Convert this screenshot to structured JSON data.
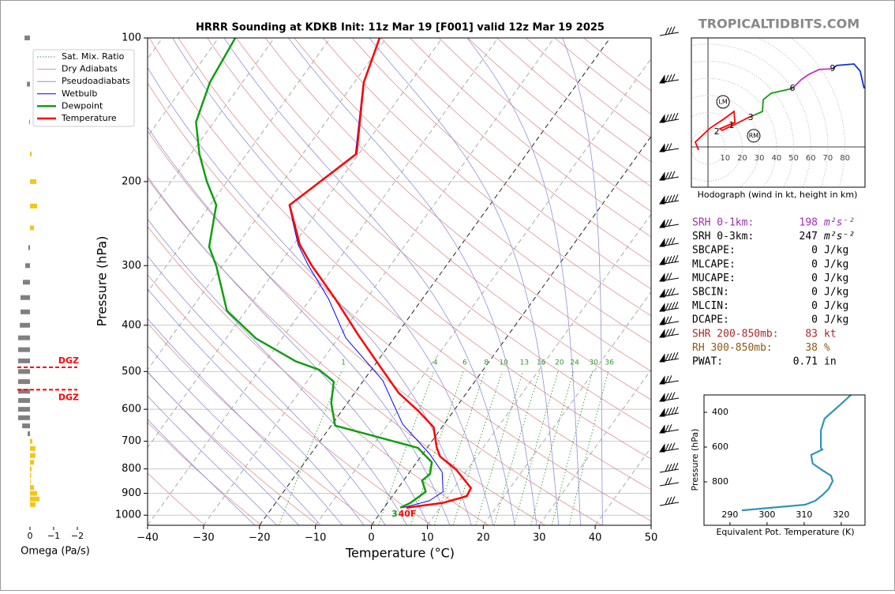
{
  "brand": "TROPICALTIDBITS.COM",
  "indices": [
    {
      "label": "SRH 0-1km:",
      "value": 198,
      "unit": "m²s⁻²",
      "color": "#9b30b0"
    },
    {
      "label": "SRH 0-3km:",
      "value": 247,
      "unit": "m²s⁻²",
      "color": "#000000"
    },
    {
      "label": "SBCAPE:",
      "value": 0,
      "unit": "J/kg",
      "color": "#000000"
    },
    {
      "label": "MLCAPE:",
      "value": 0,
      "unit": "J/kg",
      "color": "#000000"
    },
    {
      "label": "MUCAPE:",
      "value": 0,
      "unit": "J/kg",
      "color": "#000000"
    },
    {
      "label": "SBCIN:",
      "value": 0,
      "unit": "J/kg",
      "color": "#000000"
    },
    {
      "label": "MLCIN:",
      "value": 0,
      "unit": "J/kg",
      "color": "#000000"
    },
    {
      "label": "DCAPE:",
      "value": 0,
      "unit": "J/kg",
      "color": "#000000"
    },
    {
      "label": "SHR 200-850mb:",
      "value": 83,
      "unit": "kt",
      "color": "#a52a2a"
    },
    {
      "label": "RH 300-850mb:",
      "value": 38,
      "unit": "%",
      "color": "#8b5a14"
    },
    {
      "label": "PWAT:",
      "value": 0.71,
      "unit": "in",
      "color": "#000000"
    }
  ],
  "chart_data": [
    {
      "type": "skewt",
      "title": "HRRR Sounding at KDKB Init: 11z Mar 19 [F001] valid 12z Mar 19 2025",
      "x_label": "Temperature (°C)",
      "y_label": "Pressure (hPa)",
      "log_y": true,
      "xlim": [
        -40,
        50
      ],
      "ylim": [
        1050,
        100
      ],
      "xticks": [
        {
          "value": -40,
          "label": "−40"
        },
        {
          "value": -30,
          "label": "−30"
        },
        {
          "value": -20,
          "label": "−20"
        },
        {
          "value": -10,
          "label": "−10"
        },
        0,
        10,
        20,
        30,
        40,
        50
      ],
      "yticks": [
        100,
        200,
        300,
        400,
        500,
        600,
        700,
        800,
        900,
        1000
      ],
      "grid": true,
      "mixing_ratios": [
        1,
        4,
        6,
        8,
        10,
        13,
        16,
        20,
        24,
        30,
        36
      ],
      "background_lines": [
        {
          "name": "Sat. Mix. Ratio",
          "color": "#2e9b2e",
          "style": "dotted"
        },
        {
          "name": "Dry Adiabats",
          "color": "#e09090",
          "style": "solid"
        },
        {
          "name": "Pseudoadiabats",
          "color": "#9090d8",
          "style": "solid"
        }
      ],
      "series": [
        {
          "name": "Wetbulb",
          "color": "#0000ff",
          "width": 1,
          "pressure": [
            100,
            124,
            175,
            224,
            271,
            299,
            352,
            425,
            522,
            645,
            745,
            812,
            893,
            933,
            965
          ],
          "values": [
            -61.2,
            -58.4,
            -50.6,
            -55.9,
            -49.2,
            -44.8,
            -36.8,
            -28.7,
            -16.6,
            -7.4,
            1.3,
            5.8,
            8.5,
            7.2,
            3.3
          ]
        },
        {
          "name": "Dewpoint",
          "color": "#109e10",
          "width": 2.5,
          "pressure": [
            100,
            124,
            150,
            175,
            200,
            224,
            274,
            301,
            373,
            426,
            476,
            496,
            525,
            582,
            649,
            694,
            723,
            775,
            820,
            846,
            893,
            943,
            965
          ],
          "values": [
            -87,
            -85.8,
            -83.2,
            -78.5,
            -73.6,
            -68.9,
            -64.8,
            -61,
            -53.4,
            -44.7,
            -34.6,
            -29.3,
            -25.2,
            -22.9,
            -19.3,
            -8.3,
            -1.6,
            2.7,
            3.9,
            3.3,
            5.4,
            4.1,
            2.9
          ]
        },
        {
          "name": "Temperature",
          "color": "#ff0000",
          "width": 2.5,
          "pressure": [
            100,
            124,
            175,
            224,
            271,
            299,
            352,
            421,
            484,
            554,
            605,
            654,
            720,
            753,
            804,
            877,
            912,
            919,
            943,
            965
          ],
          "values": [
            -61.2,
            -58.3,
            -50.4,
            -55.8,
            -48.9,
            -44.2,
            -35.6,
            -26.6,
            -19.3,
            -12.2,
            -6.3,
            -1.5,
            1.6,
            3.4,
            8.1,
            13,
            13.3,
            12.6,
            9.8,
            4
          ]
        }
      ],
      "surface_labels": [
        {
          "text": "3",
          "color": "#109e10"
        },
        {
          "text": "40F",
          "color": "#ff0000"
        }
      ],
      "legend": "upper left"
    },
    {
      "type": "omega",
      "x_label": "Omega (Pa/s)",
      "xlim": [
        0.5,
        -2.3
      ],
      "ylim": [
        1050,
        100
      ],
      "xticks": [
        0,
        {
          "value": -1,
          "label": "−1"
        },
        {
          "value": -2,
          "label": "−2"
        }
      ],
      "color_positive": "#808080",
      "color_negative": "#f5c518",
      "pressure": [
        100,
        125,
        150,
        175,
        200,
        225,
        250,
        275,
        300,
        325,
        350,
        375,
        400,
        425,
        450,
        475,
        500,
        525,
        550,
        575,
        600,
        625,
        650,
        675,
        700,
        725,
        750,
        775,
        800,
        825,
        850,
        875,
        900,
        925,
        950
      ],
      "values": [
        0.23,
        0.13,
        0.03,
        -0.07,
        -0.27,
        -0.3,
        -0.17,
        0.07,
        0.2,
        0.3,
        0.4,
        0.4,
        0.43,
        0.5,
        0.5,
        0.5,
        0.5,
        0.5,
        0.5,
        0.5,
        0.5,
        0.5,
        0.33,
        0.1,
        -0.1,
        -0.23,
        -0.23,
        -0.17,
        -0.07,
        -0.05,
        -0.03,
        -0.17,
        -0.3,
        -0.4,
        -0.23
      ],
      "dgz": {
        "label": "DGZ",
        "color": "#ff0000",
        "pressure": [
          490,
          546
        ]
      }
    },
    {
      "type": "hodograph",
      "caption": "Hodograph (wind in kt, height in km)",
      "xlim": [
        -9.7,
        91.7
      ],
      "ylim": [
        -23.5,
        63.6
      ],
      "xticks": [
        10,
        20,
        30,
        40,
        50,
        60,
        70,
        80
      ],
      "series": [
        {
          "color": "#ff0000",
          "u": [
            -5.5,
            -7.4,
            1.4,
            9.7,
            15.2,
            15.7,
            6.9,
            8.3,
            15.2,
            23.5,
            26.7
          ],
          "v": [
            -1.8,
            2.8,
            11.1,
            16.6,
            20.7,
            14.3,
            10.6,
            9.7,
            12.9,
            17.1,
            18.4
          ]
        },
        {
          "color": "#109e10",
          "u": [
            26.7,
            31.8,
            32.3,
            36.9,
            49.3
          ],
          "v": [
            18.4,
            20.7,
            27.6,
            31.3,
            34.1
          ]
        },
        {
          "color": "#c030c0",
          "u": [
            49.3,
            54.4,
            59,
            65,
            72.8
          ],
          "v": [
            34.1,
            39.2,
            42.4,
            45.2,
            45.6
          ]
        },
        {
          "color": "#1030e0",
          "u": [
            72.8,
            75.1,
            85.3,
            88.9,
            91.2
          ],
          "v": [
            45.6,
            47.5,
            48.4,
            44.2,
            34.1
          ]
        }
      ],
      "height_labels": [
        {
          "label": "1",
          "u": 13.8,
          "v": 12.4
        },
        {
          "label": "2",
          "u": 5.1,
          "v": 8.8
        },
        {
          "label": "3",
          "u": 24.9,
          "v": 17.1
        },
        {
          "label": "6",
          "u": 49.3,
          "v": 34.1
        },
        {
          "label": "9",
          "u": 72.8,
          "v": 45.6
        }
      ],
      "storm_motion": [
        {
          "label": "LM",
          "u": 8.8,
          "v": 26.3
        },
        {
          "label": "RM",
          "u": 26.7,
          "v": 6.5
        }
      ]
    },
    {
      "type": "line",
      "x_label": "Equivalent Pot. Temperature (K)",
      "y_label": "Pressure (hPa)",
      "xlim": [
        283,
        326.4
      ],
      "ylim": [
        1050,
        300
      ],
      "xticks": [
        290,
        300,
        310,
        320
      ],
      "yticks": [
        400,
        600,
        800
      ],
      "series": [
        {
          "color": "#2f96b4",
          "pressure": [
            300,
            355,
            436,
            505,
            605,
            614,
            645,
            695,
            736,
            764,
            795,
            841,
            877,
            909,
            932,
            964
          ],
          "values": [
            322.6,
            319.8,
            315.5,
            314.5,
            314.5,
            314.9,
            311.9,
            312.3,
            315.1,
            317.2,
            317.7,
            316.6,
            314.9,
            313,
            310.2,
            293.2
          ]
        }
      ]
    }
  ]
}
